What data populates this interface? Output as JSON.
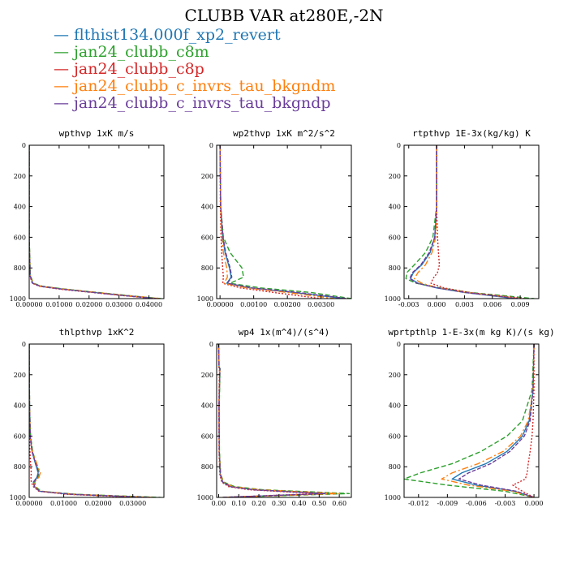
{
  "title": "CLUBB VAR at280E,-2N",
  "legend": [
    {
      "label": "flthist134.000f_xp2_revert",
      "color": "#1f77b4"
    },
    {
      "label": "jan24_clubb_c8m",
      "color": "#2ca02c"
    },
    {
      "label": "jan24_clubb_c8p",
      "color": "#d62728"
    },
    {
      "label": "jan24_clubb_c_invrs_tau_bkgndm",
      "color": "#ff7f0e"
    },
    {
      "label": "jan24_clubb_c_invrs_tau_bkgndp",
      "color": "#6a3d9a"
    }
  ],
  "legend_marker": "—",
  "chart_data": [
    {
      "type": "line",
      "title": "wpthvp  1xK m/s",
      "xlim": [
        0,
        0.045
      ],
      "ylim": [
        1000,
        0
      ],
      "xticks": [
        0,
        0.01,
        0.02,
        0.03,
        0.04
      ],
      "xtick_labels": [
        "0.00000",
        "0.01000",
        "0.02000",
        "0.03000",
        "0.04000"
      ],
      "yticks": [
        0,
        200,
        400,
        600,
        800,
        1000
      ],
      "ytick_labels": [
        "0",
        "200",
        "400",
        "600",
        "800",
        "1000"
      ],
      "series": [
        {
          "y": [
            0,
            600,
            850,
            900,
            920,
            940,
            960,
            980,
            1000
          ],
          "x": [
            0,
            0,
            0.0003,
            0.0012,
            0.004,
            0.012,
            0.022,
            0.032,
            0.043
          ]
        },
        {
          "y": [
            0,
            600,
            850,
            900,
            920,
            940,
            960,
            980,
            1000
          ],
          "x": [
            0,
            0,
            0.0004,
            0.0014,
            0.0045,
            0.013,
            0.023,
            0.033,
            0.044
          ]
        },
        {
          "y": [
            0,
            600,
            850,
            900,
            920,
            940,
            960,
            980,
            1000
          ],
          "x": [
            0,
            0,
            0.0002,
            0.001,
            0.0035,
            0.011,
            0.021,
            0.031,
            0.042
          ]
        },
        {
          "y": [
            0,
            600,
            850,
            900,
            920,
            940,
            960,
            980,
            1000
          ],
          "x": [
            0,
            0,
            0.0003,
            0.0012,
            0.004,
            0.0125,
            0.0225,
            0.0325,
            0.0435
          ]
        },
        {
          "y": [
            0,
            600,
            850,
            900,
            920,
            940,
            960,
            980,
            1000
          ],
          "x": [
            0,
            0,
            0.0003,
            0.0011,
            0.0038,
            0.0118,
            0.0215,
            0.0315,
            0.0425
          ]
        }
      ]
    },
    {
      "type": "line",
      "title": "wp2thvp  1xK m^2/s^2",
      "xlim": [
        -0.0001,
        0.0039
      ],
      "ylim": [
        1000,
        0
      ],
      "xticks": [
        0,
        0.001,
        0.002,
        0.003
      ],
      "xtick_labels": [
        "0.00000",
        "0.00100",
        "0.00200",
        "0.00300"
      ],
      "yticks": [
        0,
        200,
        400,
        600,
        800,
        1000
      ],
      "ytick_labels": [
        "0",
        "200",
        "400",
        "600",
        "800",
        "1000"
      ],
      "series": [
        {
          "y": [
            0,
            400,
            600,
            700,
            800,
            860,
            900,
            930,
            960,
            1000
          ],
          "x": [
            0,
            2e-05,
            8e-05,
            0.00015,
            0.00028,
            0.00033,
            0.0002,
            0.0009,
            0.0022,
            0.0037
          ]
        },
        {
          "y": [
            0,
            400,
            600,
            700,
            800,
            860,
            900,
            930,
            960,
            1000
          ],
          "x": [
            0,
            2e-05,
            0.0001,
            0.0003,
            0.00065,
            0.0007,
            0.0003,
            0.0012,
            0.0027,
            0.0039
          ]
        },
        {
          "y": [
            0,
            400,
            600,
            700,
            800,
            860,
            900,
            930,
            960,
            1000
          ],
          "x": [
            0,
            1e-05,
            3e-05,
            5e-05,
            8e-05,
            0.0001,
            8e-05,
            0.0006,
            0.0016,
            0.003
          ]
        },
        {
          "y": [
            0,
            400,
            600,
            700,
            800,
            860,
            900,
            930,
            960,
            1000
          ],
          "x": [
            0,
            2e-05,
            5e-05,
            0.0001,
            0.0002,
            0.00022,
            0.00012,
            0.0008,
            0.002,
            0.0034
          ]
        },
        {
          "y": [
            0,
            400,
            600,
            700,
            800,
            860,
            900,
            930,
            960,
            1000
          ],
          "x": [
            0,
            2e-05,
            9e-05,
            0.00017,
            0.0003,
            0.00035,
            0.00022,
            0.00095,
            0.0023,
            0.0038
          ]
        }
      ]
    },
    {
      "type": "line",
      "title": "rtpthvp  1E-3x(kg/kg) K",
      "xlim": [
        -0.0035,
        0.011
      ],
      "ylim": [
        1000,
        0
      ],
      "xticks": [
        -0.003,
        0,
        0.003,
        0.006,
        0.009
      ],
      "xtick_labels": [
        "-0.003",
        "0.000",
        "0.003",
        "0.006",
        "0.009"
      ],
      "yticks": [
        0,
        200,
        400,
        600,
        800,
        1000
      ],
      "ytick_labels": [
        "0",
        "200",
        "400",
        "600",
        "800",
        "1000"
      ],
      "series": [
        {
          "y": [
            0,
            400,
            600,
            700,
            780,
            830,
            870,
            900,
            930,
            960,
            1000
          ],
          "x": [
            0,
            0,
            -0.0002,
            -0.0007,
            -0.0016,
            -0.0025,
            -0.0028,
            -0.002,
            0,
            0.003,
            0.0085
          ]
        },
        {
          "y": [
            0,
            400,
            600,
            700,
            780,
            830,
            870,
            900,
            930,
            960,
            1000
          ],
          "x": [
            0,
            0,
            -0.0004,
            -0.0012,
            -0.0024,
            -0.0032,
            -0.0033,
            -0.0022,
            0.0004,
            0.0036,
            0.0105
          ]
        },
        {
          "y": [
            0,
            400,
            600,
            700,
            780,
            830,
            870,
            900,
            930,
            960,
            1000
          ],
          "x": [
            0,
            0,
            0.0001,
            0.0002,
            0.0003,
            0.0001,
            -0.0004,
            -0.0006,
            0.0008,
            0.0035,
            0.0095
          ]
        },
        {
          "y": [
            0,
            400,
            600,
            700,
            780,
            830,
            870,
            900,
            930,
            960,
            1000
          ],
          "x": [
            0,
            0,
            -0.0001,
            -0.0005,
            -0.0012,
            -0.002,
            -0.0024,
            -0.0016,
            0.0002,
            0.0032,
            0.009
          ]
        },
        {
          "y": [
            0,
            400,
            600,
            700,
            780,
            830,
            870,
            900,
            930,
            960,
            1000
          ],
          "x": [
            0,
            0,
            -0.0002,
            -0.0008,
            -0.0017,
            -0.0026,
            -0.0029,
            -0.0021,
            0.0001,
            0.0031,
            0.0088
          ]
        }
      ]
    },
    {
      "type": "line",
      "title": "thlpthvp  1xK^2",
      "xlim": [
        0,
        0.039
      ],
      "ylim": [
        1000,
        0
      ],
      "xticks": [
        0,
        0.01,
        0.02,
        0.03
      ],
      "xtick_labels": [
        "0.00000",
        "0.01000",
        "0.02000",
        "0.03000"
      ],
      "yticks": [
        0,
        200,
        400,
        600,
        800,
        1000
      ],
      "ytick_labels": [
        "0",
        "200",
        "400",
        "600",
        "800",
        "1000"
      ],
      "series": [
        {
          "y": [
            0,
            400,
            600,
            700,
            780,
            840,
            870,
            900,
            930,
            960,
            980,
            1000
          ],
          "x": [
            0,
            0.0001,
            0.0003,
            0.0008,
            0.0018,
            0.0026,
            0.0022,
            0.0012,
            0.0015,
            0.003,
            0.012,
            0.034
          ]
        },
        {
          "y": [
            0,
            400,
            600,
            700,
            780,
            840,
            870,
            900,
            930,
            960,
            980,
            1000
          ],
          "x": [
            0,
            0.0001,
            0.0004,
            0.001,
            0.002,
            0.003,
            0.0026,
            0.0016,
            0.0018,
            0.0035,
            0.014,
            0.038
          ]
        },
        {
          "y": [
            0,
            400,
            600,
            700,
            780,
            840,
            870,
            900,
            930,
            960,
            980,
            1000
          ],
          "x": [
            0,
            0,
            0.0001,
            0.0002,
            0.0004,
            0.0006,
            0.0005,
            0.0006,
            0.0012,
            0.0028,
            0.011,
            0.031
          ]
        },
        {
          "y": [
            0,
            400,
            600,
            700,
            780,
            840,
            870,
            900,
            930,
            960,
            980,
            1000
          ],
          "x": [
            0,
            0.0001,
            0.0003,
            0.0009,
            0.0022,
            0.0032,
            0.0028,
            0.0014,
            0.0016,
            0.0032,
            0.013,
            0.036
          ]
        },
        {
          "y": [
            0,
            400,
            600,
            700,
            780,
            840,
            870,
            900,
            930,
            960,
            980,
            1000
          ],
          "x": [
            0,
            0.0001,
            0.0003,
            0.0008,
            0.0019,
            0.0027,
            0.0023,
            0.0013,
            0.0015,
            0.003,
            0.0125,
            0.035
          ]
        }
      ]
    },
    {
      "type": "line",
      "title": "wp4  1x(m^4)/(s^4)",
      "xlim": [
        -0.01,
        0.66
      ],
      "ylim": [
        1000,
        0
      ],
      "xticks": [
        0,
        0.1,
        0.2,
        0.3,
        0.4,
        0.5,
        0.6
      ],
      "xtick_labels": [
        "0.00",
        "0.10",
        "0.20",
        "0.30",
        "0.40",
        "0.50",
        "0.60"
      ],
      "yticks": [
        0,
        200,
        400,
        600,
        800,
        1000
      ],
      "ytick_labels": [
        "0",
        "200",
        "400",
        "600",
        "800",
        "1000"
      ],
      "series": [
        {
          "y": [
            0,
            150,
            160,
            400,
            700,
            850,
            900,
            930,
            950,
            965,
            975,
            1000
          ],
          "x": [
            0,
            0.002,
            0.006,
            0.002,
            0.003,
            0.008,
            0.02,
            0.06,
            0.18,
            0.4,
            0.55,
            0.02
          ]
        },
        {
          "y": [
            0,
            150,
            160,
            400,
            700,
            850,
            900,
            930,
            950,
            965,
            975,
            1000
          ],
          "x": [
            0,
            0.002,
            0.007,
            0.003,
            0.004,
            0.01,
            0.025,
            0.08,
            0.22,
            0.48,
            0.65,
            0.03
          ]
        },
        {
          "y": [
            0,
            150,
            160,
            400,
            700,
            850,
            900,
            930,
            950,
            965,
            975,
            1000
          ],
          "x": [
            0,
            0.001,
            0.004,
            0.001,
            0.002,
            0.006,
            0.015,
            0.05,
            0.15,
            0.35,
            0.5,
            0.02
          ]
        },
        {
          "y": [
            0,
            150,
            160,
            400,
            700,
            850,
            900,
            930,
            950,
            965,
            975,
            1000
          ],
          "x": [
            0,
            0.002,
            0.006,
            0.002,
            0.003,
            0.009,
            0.022,
            0.07,
            0.2,
            0.44,
            0.6,
            0.02
          ]
        },
        {
          "y": [
            0,
            150,
            160,
            400,
            700,
            850,
            900,
            930,
            950,
            965,
            975,
            1000
          ],
          "x": [
            0,
            0.002,
            0.006,
            0.002,
            0.003,
            0.008,
            0.02,
            0.06,
            0.17,
            0.38,
            0.53,
            0.02
          ]
        }
      ]
    },
    {
      "type": "line",
      "title": "wprtpthlp  1-E-3x(m kg K)/(s kg)",
      "xlim": [
        -0.0135,
        0.0005
      ],
      "ylim": [
        1000,
        0
      ],
      "xticks": [
        -0.012,
        -0.009,
        -0.006,
        -0.003,
        0
      ],
      "xtick_labels": [
        "-0.012",
        "-0.009",
        "-0.006",
        "-0.003",
        "0.000"
      ],
      "yticks": [
        0,
        200,
        400,
        600,
        800,
        1000
      ],
      "ytick_labels": [
        "0",
        "200",
        "400",
        "600",
        "800",
        "1000"
      ],
      "series": [
        {
          "y": [
            0,
            300,
            500,
            600,
            700,
            780,
            840,
            880,
            920,
            960,
            1000
          ],
          "x": [
            0,
            -0.0001,
            -0.0005,
            -0.0012,
            -0.0028,
            -0.005,
            -0.0075,
            -0.0085,
            -0.006,
            -0.002,
            0
          ]
        },
        {
          "y": [
            0,
            300,
            500,
            600,
            700,
            780,
            840,
            880,
            920,
            960,
            1000
          ],
          "x": [
            0,
            -0.0002,
            -0.0012,
            -0.0028,
            -0.0055,
            -0.0085,
            -0.0118,
            -0.0135,
            -0.009,
            -0.003,
            0
          ]
        },
        {
          "y": [
            0,
            300,
            500,
            600,
            700,
            780,
            840,
            880,
            920,
            960,
            1000
          ],
          "x": [
            0,
            0,
            -0.0001,
            -0.0002,
            -0.0004,
            -0.0006,
            -0.0007,
            -0.0009,
            -0.0022,
            -0.0012,
            0
          ]
        },
        {
          "y": [
            0,
            300,
            500,
            600,
            700,
            780,
            840,
            880,
            920,
            960,
            1000
          ],
          "x": [
            0,
            -0.0001,
            -0.0006,
            -0.0014,
            -0.0032,
            -0.0058,
            -0.0085,
            -0.0096,
            -0.0068,
            -0.0022,
            0
          ]
        },
        {
          "y": [
            0,
            300,
            500,
            600,
            700,
            780,
            840,
            880,
            920,
            960,
            1000
          ],
          "x": [
            0,
            -0.0001,
            -0.0004,
            -0.001,
            -0.0025,
            -0.0045,
            -0.0068,
            -0.0078,
            -0.0055,
            -0.0018,
            0
          ]
        }
      ]
    }
  ]
}
